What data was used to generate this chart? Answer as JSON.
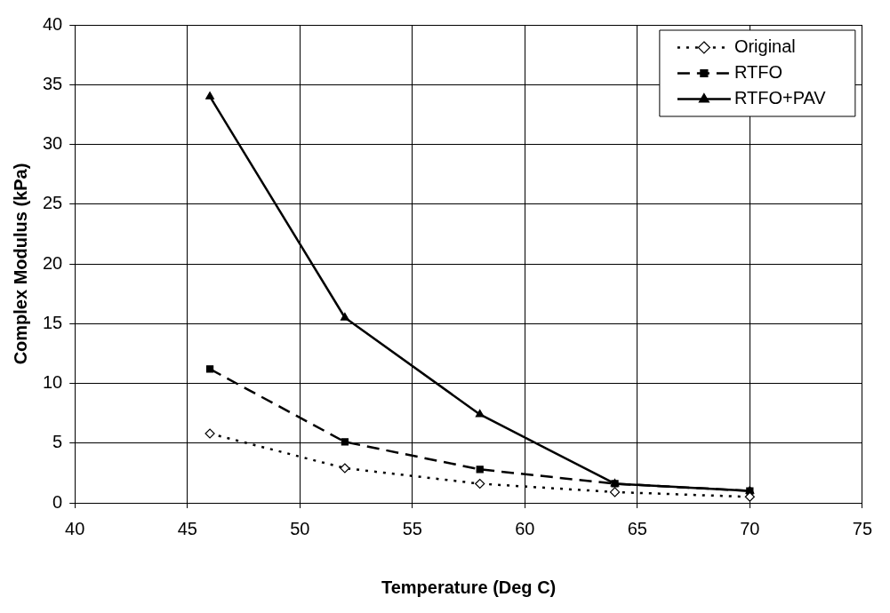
{
  "chart_data": {
    "type": "line",
    "xlabel": "Temperature (Deg C)",
    "ylabel": "Complex Modulus (kPa)",
    "x": [
      46,
      52,
      58,
      64,
      70
    ],
    "series": [
      {
        "name": "Original",
        "color": "#000000",
        "values": [
          5.8,
          2.9,
          1.6,
          0.9,
          0.5
        ],
        "marker": "diamond",
        "line_style": "dotted"
      },
      {
        "name": "RTFO",
        "color": "#000000",
        "values": [
          11.2,
          5.1,
          2.8,
          1.6,
          1.0
        ],
        "marker": "square",
        "line_style": "dashed"
      },
      {
        "name": "RTFO+PAV",
        "color": "#000000",
        "values": [
          34.0,
          15.5,
          7.4,
          1.6,
          1.0
        ],
        "marker": "triangle",
        "line_style": "solid"
      }
    ],
    "xlim": [
      40,
      75
    ],
    "xticks": [
      40,
      45,
      50,
      55,
      60,
      65,
      70,
      75
    ],
    "ylim": [
      0,
      40
    ],
    "yticks": [
      0,
      5,
      10,
      15,
      20,
      25,
      30,
      35,
      40
    ],
    "grid": true,
    "legend": "top right"
  }
}
